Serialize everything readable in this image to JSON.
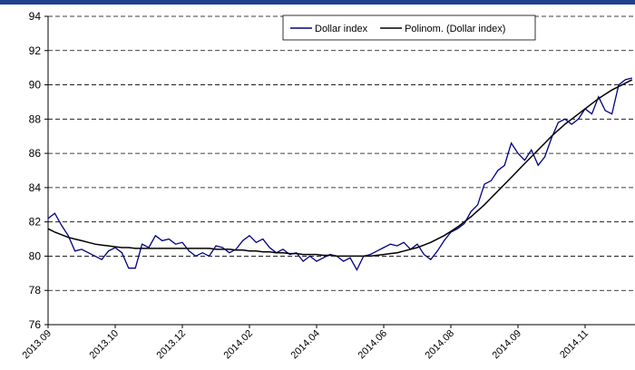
{
  "chart_data": {
    "type": "line",
    "categories": [
      "2013.09",
      null,
      null,
      null,
      null,
      null,
      null,
      null,
      null,
      null,
      "2013.10",
      null,
      null,
      null,
      null,
      null,
      null,
      null,
      null,
      null,
      "2013.12",
      null,
      null,
      null,
      null,
      null,
      null,
      null,
      null,
      null,
      "2014.02",
      null,
      null,
      null,
      null,
      null,
      null,
      null,
      null,
      null,
      "2014.04",
      null,
      null,
      null,
      null,
      null,
      null,
      null,
      null,
      null,
      "2014.06",
      null,
      null,
      null,
      null,
      null,
      null,
      null,
      null,
      null,
      "2014.08",
      null,
      null,
      null,
      null,
      null,
      null,
      null,
      null,
      null,
      "2014.09",
      null,
      null,
      null,
      null,
      null,
      null,
      null,
      null,
      null,
      "2014.11",
      null,
      null,
      null,
      null,
      null,
      null,
      null
    ],
    "series": [
      {
        "name": "Dollar index",
        "color": "#000080",
        "values": [
          82.2,
          82.5,
          81.8,
          81.2,
          80.3,
          80.4,
          80.2,
          80.0,
          79.8,
          80.3,
          80.5,
          80.2,
          79.3,
          79.3,
          80.7,
          80.5,
          81.2,
          80.9,
          81.0,
          80.7,
          80.8,
          80.3,
          80.0,
          80.2,
          80.0,
          80.6,
          80.5,
          80.2,
          80.4,
          80.9,
          81.2,
          80.8,
          81.0,
          80.5,
          80.2,
          80.4,
          80.1,
          80.2,
          79.7,
          80.0,
          79.7,
          79.9,
          80.1,
          80.0,
          79.7,
          79.9,
          79.2,
          80.0,
          80.1,
          80.3,
          80.5,
          80.7,
          80.6,
          80.8,
          80.4,
          80.7,
          80.1,
          79.8,
          80.3,
          80.9,
          81.4,
          81.6,
          81.9,
          82.6,
          83.0,
          84.2,
          84.4,
          85.0,
          85.3,
          86.6,
          86.0,
          85.6,
          86.2,
          85.3,
          85.8,
          86.9,
          87.8,
          88.0,
          87.7,
          88.0,
          88.6,
          88.3,
          89.3,
          88.5,
          88.3,
          90.0,
          90.3,
          90.4
        ]
      },
      {
        "name": "Polinom. (Dollar index)",
        "color": "#000000",
        "values": [
          81.6,
          81.4,
          81.25,
          81.1,
          81.0,
          80.9,
          80.8,
          80.7,
          80.65,
          80.6,
          80.55,
          80.5,
          80.5,
          80.45,
          80.45,
          80.45,
          80.45,
          80.45,
          80.45,
          80.45,
          80.45,
          80.45,
          80.45,
          80.45,
          80.45,
          80.4,
          80.4,
          80.4,
          80.35,
          80.35,
          80.3,
          80.3,
          80.25,
          80.25,
          80.2,
          80.2,
          80.15,
          80.15,
          80.1,
          80.1,
          80.1,
          80.05,
          80.05,
          80.0,
          80.0,
          80.0,
          80.0,
          80.0,
          80.0,
          80.05,
          80.1,
          80.15,
          80.2,
          80.3,
          80.4,
          80.5,
          80.65,
          80.8,
          81.0,
          81.2,
          81.45,
          81.7,
          82.0,
          82.3,
          82.65,
          83.0,
          83.4,
          83.8,
          84.2,
          84.6,
          85.0,
          85.4,
          85.8,
          86.2,
          86.6,
          87.0,
          87.35,
          87.7,
          88.0,
          88.3,
          88.6,
          88.9,
          89.2,
          89.45,
          89.7,
          89.9,
          90.1,
          90.3
        ]
      }
    ],
    "ylim": [
      76,
      94
    ],
    "yticks": [
      76,
      78,
      80,
      82,
      84,
      86,
      88,
      90,
      92,
      94
    ],
    "grid": true
  }
}
